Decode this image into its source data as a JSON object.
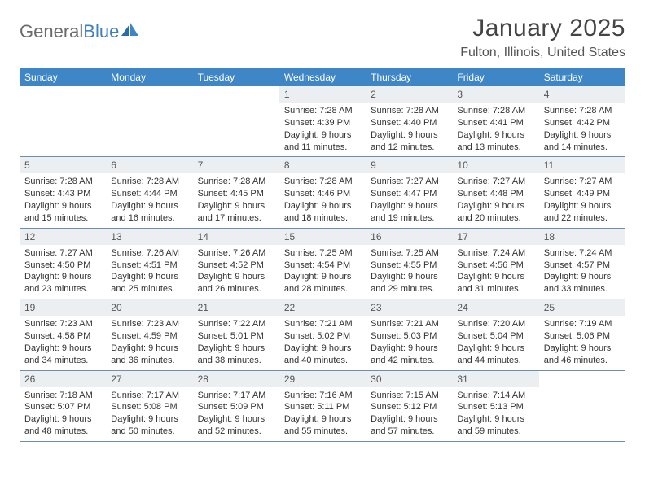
{
  "brand": {
    "part1": "General",
    "part2": "Blue"
  },
  "title": "January 2025",
  "location": "Fulton, Illinois, United States",
  "colors": {
    "header_bg": "#3f86c7",
    "header_text": "#ffffff",
    "daynum_bg": "#eceff2",
    "row_border": "#6b8fae",
    "body_text": "#333333",
    "logo_gray": "#6b6b6b",
    "logo_blue": "#3f7fbf"
  },
  "dow": [
    "Sunday",
    "Monday",
    "Tuesday",
    "Wednesday",
    "Thursday",
    "Friday",
    "Saturday"
  ],
  "weeks": [
    [
      null,
      null,
      null,
      {
        "n": "1",
        "sr": "7:28 AM",
        "ss": "4:39 PM",
        "dl": "9 hours and 11 minutes."
      },
      {
        "n": "2",
        "sr": "7:28 AM",
        "ss": "4:40 PM",
        "dl": "9 hours and 12 minutes."
      },
      {
        "n": "3",
        "sr": "7:28 AM",
        "ss": "4:41 PM",
        "dl": "9 hours and 13 minutes."
      },
      {
        "n": "4",
        "sr": "7:28 AM",
        "ss": "4:42 PM",
        "dl": "9 hours and 14 minutes."
      }
    ],
    [
      {
        "n": "5",
        "sr": "7:28 AM",
        "ss": "4:43 PM",
        "dl": "9 hours and 15 minutes."
      },
      {
        "n": "6",
        "sr": "7:28 AM",
        "ss": "4:44 PM",
        "dl": "9 hours and 16 minutes."
      },
      {
        "n": "7",
        "sr": "7:28 AM",
        "ss": "4:45 PM",
        "dl": "9 hours and 17 minutes."
      },
      {
        "n": "8",
        "sr": "7:28 AM",
        "ss": "4:46 PM",
        "dl": "9 hours and 18 minutes."
      },
      {
        "n": "9",
        "sr": "7:27 AM",
        "ss": "4:47 PM",
        "dl": "9 hours and 19 minutes."
      },
      {
        "n": "10",
        "sr": "7:27 AM",
        "ss": "4:48 PM",
        "dl": "9 hours and 20 minutes."
      },
      {
        "n": "11",
        "sr": "7:27 AM",
        "ss": "4:49 PM",
        "dl": "9 hours and 22 minutes."
      }
    ],
    [
      {
        "n": "12",
        "sr": "7:27 AM",
        "ss": "4:50 PM",
        "dl": "9 hours and 23 minutes."
      },
      {
        "n": "13",
        "sr": "7:26 AM",
        "ss": "4:51 PM",
        "dl": "9 hours and 25 minutes."
      },
      {
        "n": "14",
        "sr": "7:26 AM",
        "ss": "4:52 PM",
        "dl": "9 hours and 26 minutes."
      },
      {
        "n": "15",
        "sr": "7:25 AM",
        "ss": "4:54 PM",
        "dl": "9 hours and 28 minutes."
      },
      {
        "n": "16",
        "sr": "7:25 AM",
        "ss": "4:55 PM",
        "dl": "9 hours and 29 minutes."
      },
      {
        "n": "17",
        "sr": "7:24 AM",
        "ss": "4:56 PM",
        "dl": "9 hours and 31 minutes."
      },
      {
        "n": "18",
        "sr": "7:24 AM",
        "ss": "4:57 PM",
        "dl": "9 hours and 33 minutes."
      }
    ],
    [
      {
        "n": "19",
        "sr": "7:23 AM",
        "ss": "4:58 PM",
        "dl": "9 hours and 34 minutes."
      },
      {
        "n": "20",
        "sr": "7:23 AM",
        "ss": "4:59 PM",
        "dl": "9 hours and 36 minutes."
      },
      {
        "n": "21",
        "sr": "7:22 AM",
        "ss": "5:01 PM",
        "dl": "9 hours and 38 minutes."
      },
      {
        "n": "22",
        "sr": "7:21 AM",
        "ss": "5:02 PM",
        "dl": "9 hours and 40 minutes."
      },
      {
        "n": "23",
        "sr": "7:21 AM",
        "ss": "5:03 PM",
        "dl": "9 hours and 42 minutes."
      },
      {
        "n": "24",
        "sr": "7:20 AM",
        "ss": "5:04 PM",
        "dl": "9 hours and 44 minutes."
      },
      {
        "n": "25",
        "sr": "7:19 AM",
        "ss": "5:06 PM",
        "dl": "9 hours and 46 minutes."
      }
    ],
    [
      {
        "n": "26",
        "sr": "7:18 AM",
        "ss": "5:07 PM",
        "dl": "9 hours and 48 minutes."
      },
      {
        "n": "27",
        "sr": "7:17 AM",
        "ss": "5:08 PM",
        "dl": "9 hours and 50 minutes."
      },
      {
        "n": "28",
        "sr": "7:17 AM",
        "ss": "5:09 PM",
        "dl": "9 hours and 52 minutes."
      },
      {
        "n": "29",
        "sr": "7:16 AM",
        "ss": "5:11 PM",
        "dl": "9 hours and 55 minutes."
      },
      {
        "n": "30",
        "sr": "7:15 AM",
        "ss": "5:12 PM",
        "dl": "9 hours and 57 minutes."
      },
      {
        "n": "31",
        "sr": "7:14 AM",
        "ss": "5:13 PM",
        "dl": "9 hours and 59 minutes."
      },
      null
    ]
  ],
  "labels": {
    "sunrise": "Sunrise:",
    "sunset": "Sunset:",
    "daylight": "Daylight:"
  }
}
